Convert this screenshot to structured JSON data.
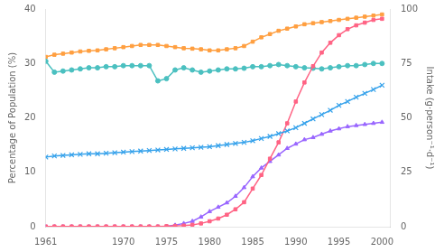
{
  "chart_data": {
    "type": "line",
    "x": [
      1961,
      1962,
      1963,
      1964,
      1965,
      1966,
      1967,
      1968,
      1969,
      1970,
      1971,
      1972,
      1973,
      1974,
      1975,
      1976,
      1977,
      1978,
      1979,
      1980,
      1981,
      1982,
      1983,
      1984,
      1985,
      1986,
      1987,
      1988,
      1989,
      1990,
      1991,
      1992,
      1993,
      1994,
      1995,
      1996,
      1997,
      1998,
      1999,
      2000
    ],
    "series": [
      {
        "marker": "x",
        "values": [
          12.8,
          13.0,
          13.1,
          13.2,
          13.3,
          13.4,
          13.4,
          13.5,
          13.6,
          13.7,
          13.8,
          13.9,
          14.0,
          14.1,
          14.2,
          14.3,
          14.4,
          14.5,
          14.6,
          14.7,
          14.9,
          15.1,
          15.3,
          15.5,
          15.8,
          16.2,
          16.6,
          17.1,
          17.6,
          18.2,
          19.0,
          19.8,
          20.6,
          21.4,
          22.3,
          23.0,
          23.8,
          24.5,
          25.2,
          26.0
        ]
      },
      {
        "marker": "square",
        "values": [
          0.05,
          0.05,
          0.05,
          0.05,
          0.05,
          0.05,
          0.05,
          0.05,
          0.05,
          0.05,
          0.05,
          0.05,
          0.05,
          0.05,
          0.1,
          0.15,
          0.2,
          0.35,
          0.6,
          1.0,
          1.5,
          2.2,
          3.2,
          4.5,
          7.0,
          9.5,
          12.5,
          15.5,
          19.0,
          23.0,
          26.5,
          29.5,
          32.0,
          33.8,
          35.2,
          36.3,
          37.0,
          37.5,
          38.0,
          38.2
        ]
      },
      {
        "marker": "circle",
        "axis": "y2",
        "values": [
          76,
          71,
          71.5,
          72,
          72.5,
          73,
          73,
          73.5,
          73.5,
          74,
          74,
          74,
          74,
          67,
          68,
          72,
          73,
          72,
          71,
          71.5,
          72,
          72.5,
          72.5,
          72.8,
          73.5,
          73.5,
          74,
          74.5,
          74,
          73.5,
          73,
          72.8,
          72.5,
          73,
          73.5,
          74,
          74,
          74.5,
          75,
          75
        ]
      },
      {
        "marker": "square",
        "axis": "y2",
        "values": [
          78,
          79,
          79.5,
          80,
          80.5,
          80.8,
          81,
          81.5,
          82,
          82.5,
          83,
          83.5,
          83.5,
          83.5,
          83,
          82.5,
          82,
          81.8,
          81.5,
          81,
          81,
          81.5,
          82,
          83,
          85,
          87,
          88.5,
          90,
          91,
          92,
          93,
          93.5,
          94,
          94.5,
          95,
          95.5,
          96,
          96.5,
          97,
          97.5
        ]
      },
      {
        "marker": "triangle",
        "axis": "y2",
        "values": [
          0,
          0,
          0,
          0,
          0,
          0,
          0,
          0,
          0,
          0,
          0,
          0,
          0,
          0,
          0.2,
          0.7,
          1.5,
          2.5,
          4.5,
          7,
          9,
          11,
          14,
          18,
          23,
          27,
          30,
          33,
          36,
          38,
          40,
          41,
          42.5,
          44,
          45,
          46,
          46.5,
          47,
          47.5,
          48
        ]
      }
    ],
    "xlim": [
      1961,
      2001
    ],
    "xticks": [
      1961,
      1970,
      1975,
      1980,
      1985,
      1990,
      1995,
      2000
    ],
    "ylim": [
      0,
      40
    ],
    "yticks": [
      0,
      10,
      20,
      30,
      40
    ],
    "y2lim": [
      0,
      100
    ],
    "y2ticks": [
      0,
      25,
      50,
      75,
      100
    ],
    "y_label": "Percentage of Population (%)",
    "y2_label": "Intake (g·person⁻¹·d⁻¹)",
    "grid": false,
    "legend": false
  }
}
